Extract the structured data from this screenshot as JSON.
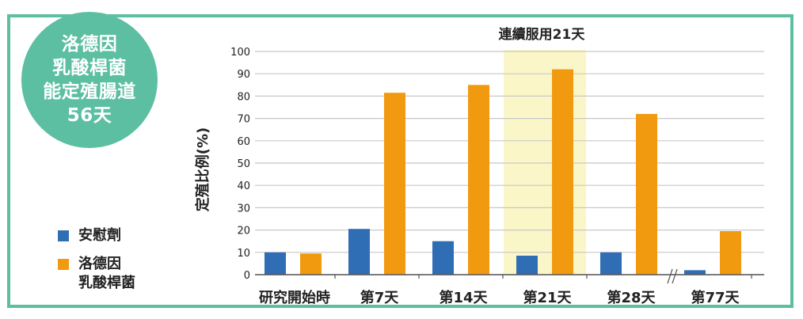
{
  "badge": {
    "lines": [
      "洛德因",
      "乳酸桿菌",
      "能定殖腸道",
      "56天"
    ]
  },
  "legend": [
    {
      "label": "安慰劑",
      "color": "#2f6db5"
    },
    {
      "label": "洛德因\n乳酸桿菌",
      "color": "#f29a0f"
    }
  ],
  "colors": {
    "frame": "#5cbfa1",
    "highlight": "#fbf6c8",
    "grid": "#c8c8c8"
  },
  "chart_data": {
    "type": "bar",
    "title": "",
    "ylabel": "定殖比例(%)",
    "xlabel": "",
    "ylim": [
      0,
      100
    ],
    "yticks": [
      0,
      10,
      20,
      30,
      40,
      50,
      60,
      70,
      80,
      90,
      100
    ],
    "categories": [
      "研究開始時",
      "第7天",
      "第14天",
      "第21天",
      "第28天",
      "第77天"
    ],
    "series": [
      {
        "name": "安慰劑",
        "values": [
          10,
          20.5,
          15,
          8.5,
          10,
          2
        ]
      },
      {
        "name": "洛德因乳酸桿菌",
        "values": [
          9.5,
          81.5,
          85,
          92,
          72,
          19.5
        ]
      }
    ],
    "highlight": {
      "category": "第21天",
      "label": "連續服用21天"
    },
    "axis_break_between": [
      "第28天",
      "第77天"
    ],
    "grid": true
  }
}
